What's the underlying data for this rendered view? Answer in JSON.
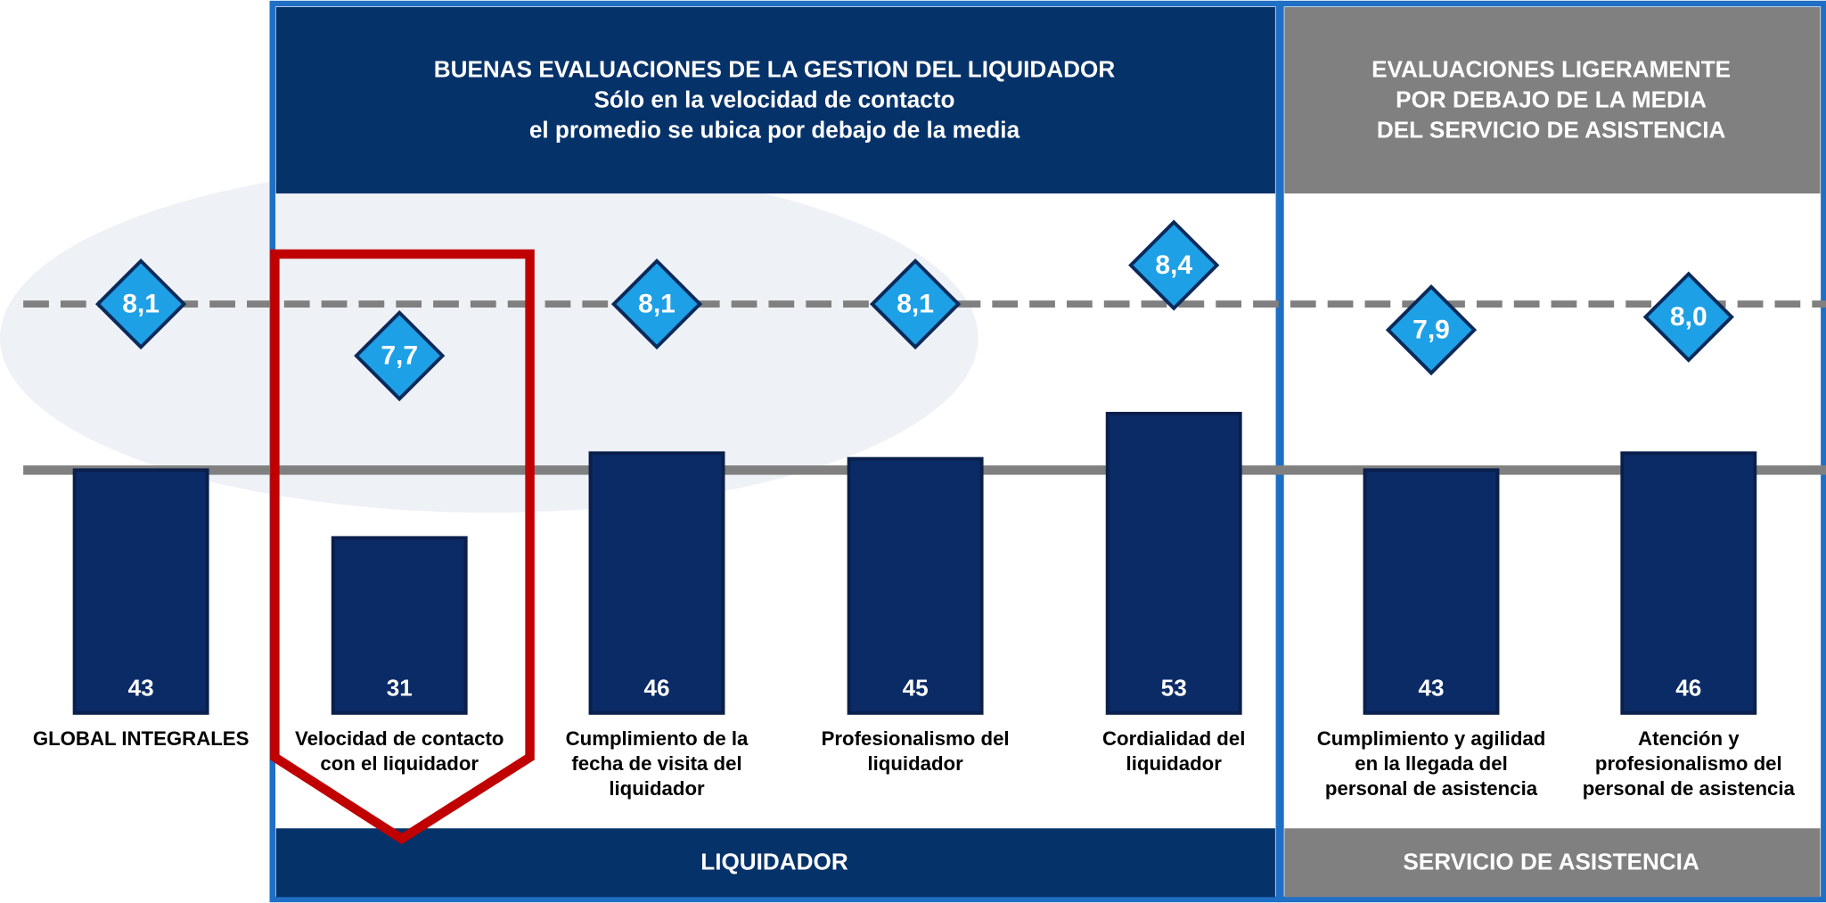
{
  "chart_data": {
    "type": "bar",
    "categories": [
      [
        "GLOBAL INTEGRALES"
      ],
      [
        "Velocidad de contacto",
        "con el liquidador"
      ],
      [
        "Cumplimiento de la",
        "fecha de visita del",
        "liquidador"
      ],
      [
        "Profesionalismo del",
        "liquidador"
      ],
      [
        "Cordialidad del",
        "liquidador"
      ],
      [
        "Cumplimiento y agilidad",
        "en la llegada del",
        "personal de asistencia"
      ],
      [
        "Atención y",
        "profesionalismo del",
        "personal de asistencia"
      ]
    ],
    "series": [
      {
        "color": "#0b2b66",
        "values": [
          43,
          31,
          46,
          45,
          53,
          43,
          46
        ]
      },
      {
        "color": "#1ea0e6",
        "values": [
          8.1,
          7.7,
          8.1,
          8.1,
          8.4,
          7.9,
          8.0
        ],
        "value_labels": [
          "8,1",
          "7,7",
          "8,1",
          "8,1",
          "8,4",
          "7,9",
          "8,0"
        ]
      }
    ],
    "groups": [
      {
        "title": [
          "BUENAS EVALUACIONES DE LA GESTION DEL LIQUIDADOR",
          "Sólo en la velocidad de contacto",
          "el promedio se ubica por debajo de la media"
        ],
        "label": "LIQUIDADOR",
        "color": "#06326a"
      },
      {
        "title": [
          "EVALUACIONES LIGERAMENTE",
          "POR DEBAJO DE LA MEDIA",
          "DEL SERVICIO DE ASISTENCIA"
        ],
        "label": "SERVICIO DE ASISTENCIA",
        "color": "#808080"
      }
    ]
  }
}
